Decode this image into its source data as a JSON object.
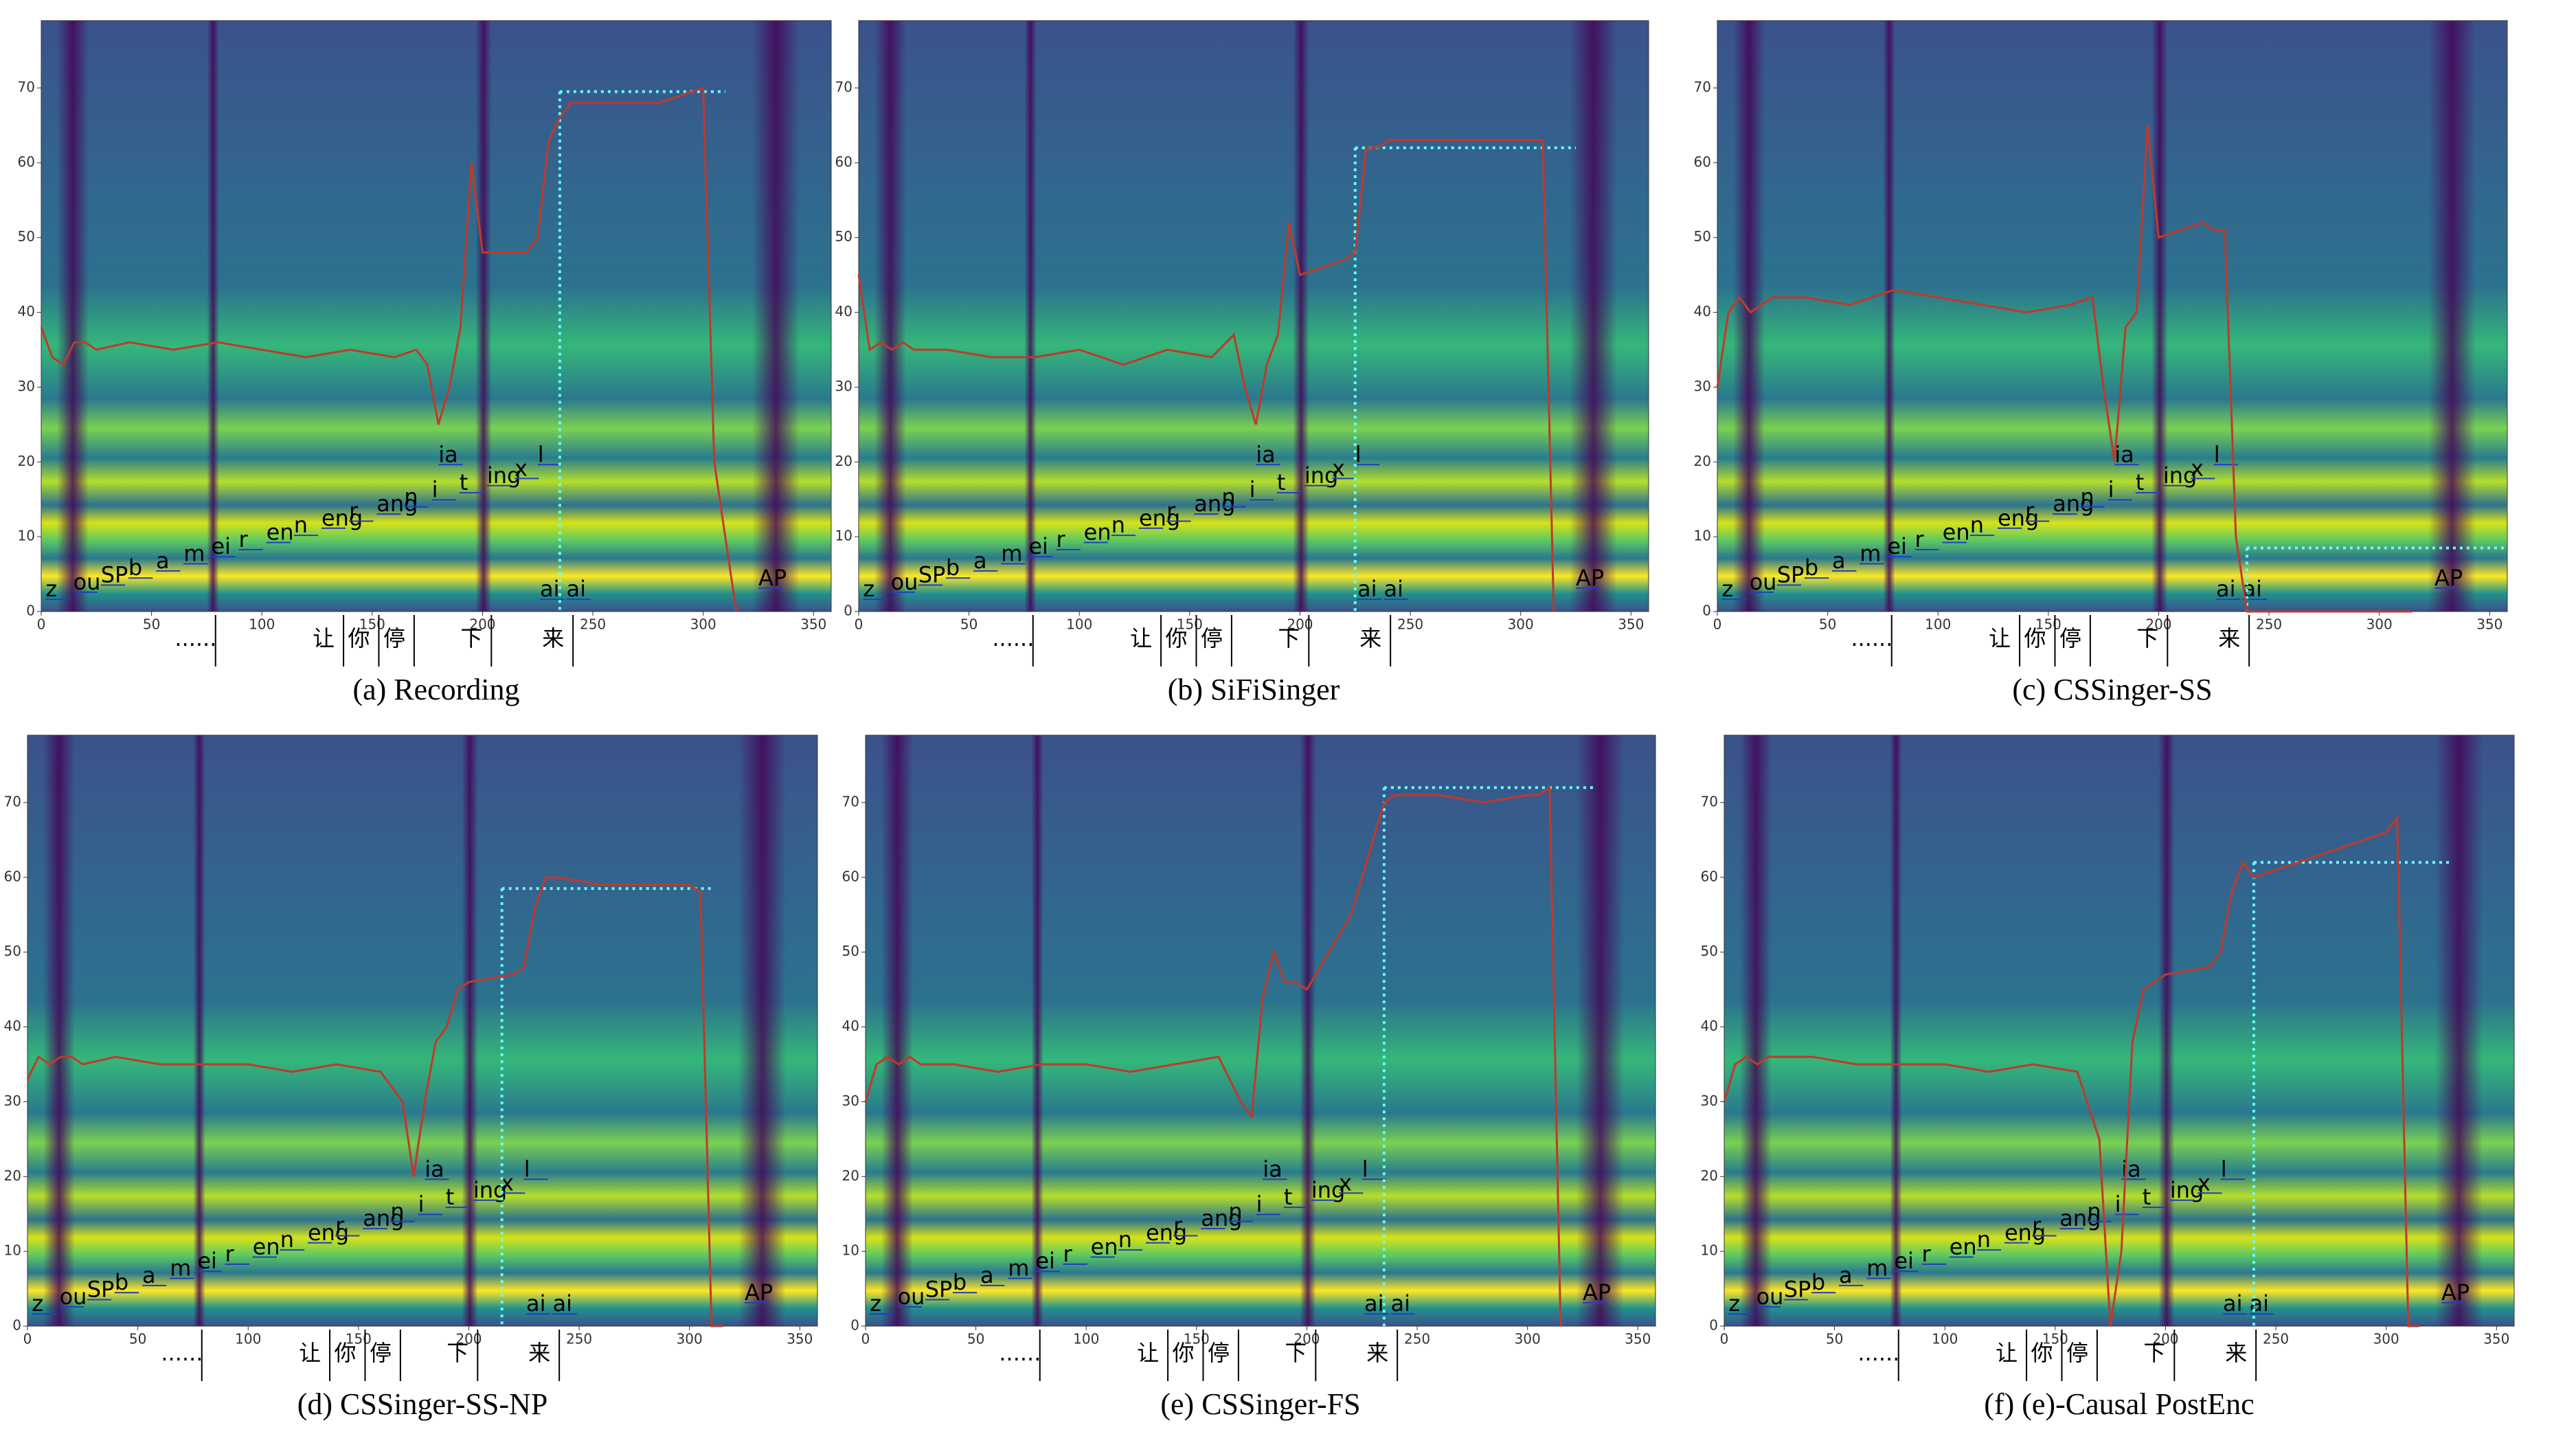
{
  "chart_data": [
    {
      "type": "line",
      "title": "(a) Recording",
      "color": "#c0392b",
      "xlim": [
        0,
        358
      ],
      "ylim": [
        0,
        79
      ],
      "xticks": [
        0,
        50,
        100,
        150,
        200,
        250,
        300,
        350
      ],
      "yticks": [
        0,
        10,
        20,
        30,
        40,
        50,
        60,
        70
      ],
      "x": [
        0,
        5,
        10,
        15,
        20,
        25,
        40,
        60,
        80,
        100,
        120,
        140,
        160,
        170,
        175,
        180,
        185,
        190,
        195,
        200,
        220,
        225,
        230,
        235,
        240,
        260,
        280,
        300,
        305,
        310,
        315
      ],
      "values": [
        38,
        34,
        33,
        36,
        36,
        35,
        36,
        35,
        36,
        35,
        34,
        35,
        34,
        35,
        33,
        25,
        30,
        38,
        60,
        48,
        48,
        50,
        63,
        66,
        68,
        68,
        68,
        70,
        20,
        10,
        0
      ],
      "targets": [
        {
          "value": 69.5,
          "x": [
            235,
            310
          ]
        }
      ],
      "phonemes": [
        "z",
        "ou",
        "SP",
        "b",
        "a",
        "m",
        "ei",
        "r",
        "en",
        "n",
        "eng",
        "r",
        "ang",
        "n",
        "i",
        "t",
        "ing",
        "x",
        "ia",
        "l",
        "ai",
        "ai",
        "AP"
      ],
      "characters": [
        "......",
        "让",
        "你",
        "停",
        "下",
        "来"
      ]
    },
    {
      "type": "line",
      "title": "(b) SiFiSinger",
      "color": "#c0392b",
      "xlim": [
        0,
        358
      ],
      "ylim": [
        0,
        79
      ],
      "xticks": [
        0,
        50,
        100,
        150,
        200,
        250,
        300,
        350
      ],
      "yticks": [
        0,
        10,
        20,
        30,
        40,
        50,
        60,
        70
      ],
      "x": [
        0,
        5,
        10,
        15,
        20,
        25,
        40,
        60,
        80,
        100,
        120,
        140,
        160,
        170,
        175,
        180,
        185,
        190,
        195,
        200,
        220,
        225,
        230,
        235,
        240,
        260,
        280,
        300,
        305,
        310,
        315
      ],
      "values": [
        45,
        35,
        36,
        35,
        36,
        35,
        35,
        34,
        34,
        35,
        33,
        35,
        34,
        37,
        30,
        25,
        33,
        37,
        52,
        45,
        47,
        48,
        62,
        62,
        63,
        63,
        63,
        63,
        63,
        63,
        0
      ],
      "targets": [
        {
          "value": 62,
          "x": [
            225,
            325
          ]
        }
      ],
      "phonemes": [
        "z",
        "ou",
        "SP",
        "b",
        "a",
        "m",
        "ei",
        "r",
        "en",
        "n",
        "eng",
        "r",
        "ang",
        "n",
        "i",
        "t",
        "ing",
        "x",
        "ia",
        "l",
        "ai",
        "ai",
        "AP"
      ],
      "characters": [
        "......",
        "让",
        "你",
        "停",
        "下",
        "来"
      ]
    },
    {
      "type": "line",
      "title": "(c) CSSinger-SS",
      "color": "#c0392b",
      "xlim": [
        0,
        358
      ],
      "ylim": [
        0,
        79
      ],
      "xticks": [
        0,
        50,
        100,
        150,
        200,
        250,
        300,
        350
      ],
      "yticks": [
        0,
        10,
        20,
        30,
        40,
        50,
        60,
        70
      ],
      "x": [
        0,
        5,
        10,
        15,
        20,
        25,
        40,
        60,
        80,
        100,
        120,
        140,
        160,
        170,
        175,
        180,
        185,
        190,
        195,
        200,
        220,
        225,
        230,
        235,
        240,
        260,
        280,
        300,
        305,
        310,
        315
      ],
      "values": [
        30,
        40,
        42,
        40,
        41,
        42,
        42,
        41,
        43,
        42,
        41,
        40,
        41,
        42,
        30,
        20,
        38,
        40,
        65,
        50,
        52,
        51,
        51,
        10,
        0,
        0,
        0,
        0,
        0,
        0,
        0
      ],
      "targets": [
        {
          "value": 8.5,
          "x": [
            240,
            358
          ]
        }
      ],
      "phonemes": [
        "z",
        "ou",
        "SP",
        "b",
        "a",
        "m",
        "ei",
        "r",
        "en",
        "n",
        "eng",
        "r",
        "ang",
        "n",
        "i",
        "t",
        "ing",
        "x",
        "ia",
        "l",
        "ai",
        "ai",
        "AP"
      ],
      "characters": [
        "......",
        "让",
        "你",
        "停",
        "下",
        "来"
      ]
    },
    {
      "type": "line",
      "title": "(d) CSSinger-SS-NP",
      "color": "#c0392b",
      "xlim": [
        0,
        358
      ],
      "ylim": [
        0,
        79
      ],
      "xticks": [
        0,
        50,
        100,
        150,
        200,
        250,
        300,
        350
      ],
      "yticks": [
        0,
        10,
        20,
        30,
        40,
        50,
        60,
        70
      ],
      "x": [
        0,
        5,
        10,
        15,
        20,
        25,
        40,
        60,
        80,
        100,
        120,
        140,
        160,
        170,
        175,
        180,
        185,
        190,
        195,
        200,
        220,
        225,
        230,
        235,
        240,
        260,
        280,
        300,
        305,
        310,
        315
      ],
      "values": [
        33,
        36,
        35,
        36,
        36,
        35,
        36,
        35,
        35,
        35,
        34,
        35,
        34,
        30,
        20,
        30,
        38,
        40,
        45,
        46,
        47,
        48,
        56,
        60,
        60,
        59,
        59,
        59,
        58,
        0,
        0
      ],
      "targets": [
        {
          "value": 58.5,
          "x": [
            215,
            310
          ]
        }
      ],
      "phonemes": [
        "z",
        "ou",
        "SP",
        "b",
        "a",
        "m",
        "ei",
        "r",
        "en",
        "n",
        "eng",
        "r",
        "ang",
        "n",
        "i",
        "t",
        "ing",
        "x",
        "ia",
        "l",
        "ai",
        "ai",
        "AP"
      ],
      "characters": [
        "......",
        "让",
        "你",
        "停",
        "下",
        "来"
      ]
    },
    {
      "type": "line",
      "title": "(e) CSSinger-FS",
      "color": "#c0392b",
      "xlim": [
        0,
        358
      ],
      "ylim": [
        0,
        79
      ],
      "xticks": [
        0,
        50,
        100,
        150,
        200,
        250,
        300,
        350
      ],
      "yticks": [
        0,
        10,
        20,
        30,
        40,
        50,
        60,
        70
      ],
      "x": [
        0,
        5,
        10,
        15,
        20,
        25,
        40,
        60,
        80,
        100,
        120,
        140,
        160,
        170,
        175,
        180,
        185,
        190,
        195,
        200,
        220,
        225,
        230,
        235,
        240,
        260,
        280,
        300,
        305,
        310,
        315
      ],
      "values": [
        30,
        35,
        36,
        35,
        36,
        35,
        35,
        34,
        35,
        35,
        34,
        35,
        36,
        30,
        28,
        44,
        50,
        46,
        46,
        45,
        55,
        60,
        65,
        70,
        71,
        71,
        70,
        71,
        71,
        72,
        0
      ],
      "targets": [
        {
          "value": 72,
          "x": [
            235,
            330
          ]
        }
      ],
      "phonemes": [
        "z",
        "ou",
        "SP",
        "b",
        "a",
        "m",
        "ei",
        "r",
        "en",
        "n",
        "eng",
        "r",
        "ang",
        "n",
        "i",
        "t",
        "ing",
        "x",
        "ia",
        "l",
        "ai",
        "ai",
        "AP"
      ],
      "characters": [
        "......",
        "让",
        "你",
        "停",
        "下",
        "来"
      ]
    },
    {
      "type": "line",
      "title": "(f) (e)-Causal PostEnc",
      "color": "#c0392b",
      "xlim": [
        0,
        358
      ],
      "ylim": [
        0,
        79
      ],
      "xticks": [
        0,
        50,
        100,
        150,
        200,
        250,
        300,
        350
      ],
      "yticks": [
        0,
        10,
        20,
        30,
        40,
        50,
        60,
        70
      ],
      "x": [
        0,
        5,
        10,
        15,
        20,
        25,
        40,
        60,
        80,
        100,
        120,
        140,
        160,
        170,
        175,
        180,
        185,
        190,
        195,
        200,
        220,
        225,
        230,
        235,
        240,
        260,
        280,
        300,
        305,
        310,
        315
      ],
      "values": [
        30,
        35,
        36,
        35,
        36,
        36,
        36,
        35,
        35,
        35,
        34,
        35,
        34,
        25,
        0,
        10,
        38,
        45,
        46,
        47,
        48,
        50,
        58,
        62,
        60,
        62,
        64,
        66,
        68,
        0,
        0
      ],
      "targets": [
        {
          "value": 62,
          "x": [
            240,
            330
          ]
        }
      ],
      "phonemes": [
        "z",
        "ou",
        "SP",
        "b",
        "a",
        "m",
        "ei",
        "r",
        "en",
        "n",
        "eng",
        "r",
        "ang",
        "n",
        "i",
        "t",
        "ing",
        "x",
        "ia",
        "l",
        "ai",
        "ai",
        "AP"
      ],
      "characters": [
        "......",
        "让",
        "你",
        "停",
        "下",
        "来"
      ]
    }
  ]
}
